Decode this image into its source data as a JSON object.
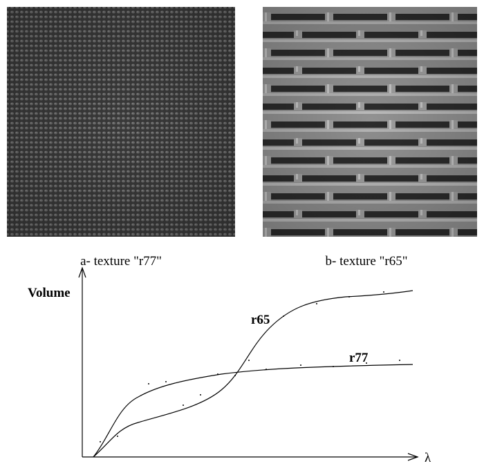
{
  "figure": {
    "panels": [
      {
        "caption": "a- texture \"r77\""
      },
      {
        "caption": "b- texture \"r65\""
      }
    ],
    "plot": {
      "y_axis_label": "Volume",
      "x_axis_label": "λ",
      "curve_labels": [
        "r65",
        "r77"
      ]
    }
  }
}
